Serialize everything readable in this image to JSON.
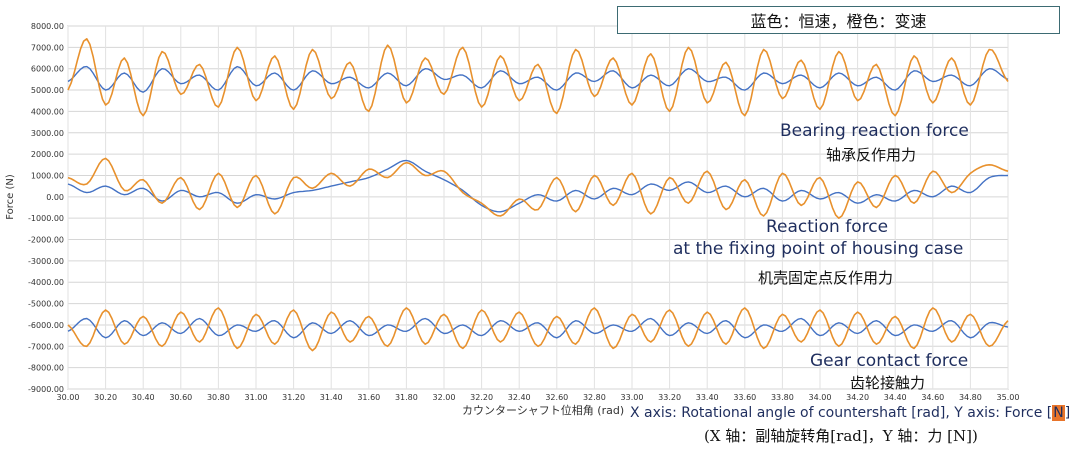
{
  "legend_text": "蓝色：恒速，橙色：变速",
  "annotations": {
    "bearing_en": "Bearing reaction force",
    "bearing_zh": "轴承反作用力",
    "housing_en_1": "Reaction force",
    "housing_en_2": "at the fixing point of housing case",
    "housing_zh": "机壳固定点反作用力",
    "gear_en": "Gear contact force",
    "gear_zh": "齿轮接触力"
  },
  "caption": {
    "en_main": "X axis: Rotational angle of countershaft [rad], Y axis: Force [",
    "en_hl": "N",
    "en_end": "]",
    "zh": "(X 轴：副轴旋转角[rad]，Y 轴：力 [N])"
  },
  "chart_data": {
    "type": "line",
    "xlabel": "カウンターシャフト位相角 (rad)",
    "ylabel": "Force (N)",
    "xlim": [
      30.0,
      35.0
    ],
    "ylim": [
      -9000,
      8000
    ],
    "x_ticks": [
      "30.00",
      "30.20",
      "30.40",
      "30.60",
      "30.80",
      "31.00",
      "31.20",
      "31.40",
      "31.60",
      "31.80",
      "32.00",
      "32.20",
      "32.40",
      "32.60",
      "32.80",
      "33.00",
      "33.20",
      "33.40",
      "33.60",
      "33.80",
      "34.00",
      "34.20",
      "34.40",
      "34.60",
      "34.80",
      "35.00"
    ],
    "y_ticks": [
      "8000.00",
      "7000.00",
      "6000.00",
      "5000.00",
      "4000.00",
      "3000.00",
      "2000.00",
      "1000.00",
      "0.00",
      "-1000.00",
      "-2000.00",
      "-3000.00",
      "-4000.00",
      "-5000.00",
      "-6000.00",
      "-7000.00",
      "-8000.00",
      "-9000.00"
    ],
    "colors": {
      "constant_speed": "#4472c4",
      "variable_speed": "#e8912d"
    },
    "grid": true,
    "series": [
      {
        "group": "bearing",
        "color": "#4472c4",
        "x": [
          30.0,
          30.1,
          30.2,
          30.3,
          30.4,
          30.5,
          30.6,
          30.7,
          30.8,
          30.9,
          31.0,
          31.1,
          31.2,
          31.3,
          31.4,
          31.5,
          31.6,
          31.7,
          31.8,
          31.9,
          32.0,
          32.1,
          32.2,
          32.3,
          32.4,
          32.5,
          32.6,
          32.7,
          32.8,
          32.9,
          33.0,
          33.1,
          33.2,
          33.3,
          33.4,
          33.5,
          33.6,
          33.7,
          33.8,
          33.9,
          34.0,
          34.1,
          34.2,
          34.3,
          34.4,
          34.5,
          34.6,
          34.7,
          34.8,
          34.9,
          35.0
        ],
        "y": [
          5400,
          6100,
          5000,
          5800,
          4900,
          6000,
          5300,
          5700,
          5000,
          6100,
          5200,
          5800,
          5000,
          5900,
          5300,
          5600,
          5100,
          5800,
          5200,
          6000,
          5500,
          5700,
          5100,
          5900,
          5300,
          5600,
          5000,
          5800,
          5400,
          5900,
          5100,
          5700,
          5200,
          6000,
          5400,
          5600,
          5000,
          5800,
          5300,
          5700,
          5100,
          5800,
          5200,
          5600,
          5000,
          5900,
          5400,
          5700,
          5200,
          6000,
          5500
        ]
      },
      {
        "group": "bearing",
        "color": "#e8912d",
        "x": [
          30.0,
          30.1,
          30.2,
          30.3,
          30.4,
          30.5,
          30.6,
          30.7,
          30.8,
          30.9,
          31.0,
          31.1,
          31.2,
          31.3,
          31.4,
          31.5,
          31.6,
          31.7,
          31.8,
          31.9,
          32.0,
          32.1,
          32.2,
          32.3,
          32.4,
          32.5,
          32.6,
          32.7,
          32.8,
          32.9,
          33.0,
          33.1,
          33.2,
          33.3,
          33.4,
          33.5,
          33.6,
          33.7,
          33.8,
          33.9,
          34.0,
          34.1,
          34.2,
          34.3,
          34.4,
          34.5,
          34.6,
          34.7,
          34.8,
          34.9,
          35.0
        ],
        "y": [
          5000,
          7400,
          4300,
          6500,
          3800,
          6800,
          4800,
          6200,
          4200,
          7000,
          4500,
          6600,
          4100,
          6900,
          4600,
          6300,
          4000,
          7100,
          4400,
          6500,
          4800,
          7000,
          4200,
          6600,
          4500,
          6200,
          3900,
          6900,
          4700,
          6500,
          4300,
          6700,
          4000,
          7000,
          4400,
          6300,
          3800,
          6900,
          4600,
          6400,
          4100,
          6800,
          4500,
          6200,
          3800,
          6600,
          4400,
          6500,
          4300,
          6900,
          5400
        ]
      },
      {
        "group": "housing",
        "color": "#4472c4",
        "x": [
          30.0,
          30.1,
          30.2,
          30.3,
          30.4,
          30.5,
          30.6,
          30.7,
          30.8,
          30.9,
          31.0,
          31.1,
          31.2,
          31.3,
          31.4,
          31.5,
          31.6,
          31.7,
          31.8,
          31.9,
          32.0,
          32.1,
          32.2,
          32.3,
          32.4,
          32.5,
          32.6,
          32.7,
          32.8,
          32.9,
          33.0,
          33.1,
          33.2,
          33.3,
          33.4,
          33.5,
          33.6,
          33.7,
          33.8,
          33.9,
          34.0,
          34.1,
          34.2,
          34.3,
          34.4,
          34.5,
          34.6,
          34.7,
          34.8,
          34.9,
          35.0
        ],
        "y": [
          600,
          200,
          500,
          100,
          400,
          -200,
          300,
          0,
          200,
          -300,
          100,
          -100,
          200,
          300,
          500,
          700,
          900,
          1300,
          1700,
          1200,
          800,
          300,
          -400,
          -700,
          -300,
          100,
          -200,
          300,
          -100,
          400,
          100,
          600,
          300,
          700,
          200,
          500,
          0,
          400,
          -200,
          300,
          -100,
          200,
          -300,
          100,
          -200,
          300,
          0,
          500,
          200,
          900,
          1000
        ]
      },
      {
        "group": "housing",
        "color": "#e8912d",
        "x": [
          30.0,
          30.1,
          30.2,
          30.3,
          30.4,
          30.5,
          30.6,
          30.7,
          30.8,
          30.9,
          31.0,
          31.1,
          31.2,
          31.3,
          31.4,
          31.5,
          31.6,
          31.7,
          31.8,
          31.9,
          32.0,
          32.1,
          32.2,
          32.3,
          32.4,
          32.5,
          32.6,
          32.7,
          32.8,
          32.9,
          33.0,
          33.1,
          33.2,
          33.3,
          33.4,
          33.5,
          33.6,
          33.7,
          33.8,
          33.9,
          34.0,
          34.1,
          34.2,
          34.3,
          34.4,
          34.5,
          34.6,
          34.7,
          34.8,
          34.9,
          35.0
        ],
        "y": [
          900,
          600,
          1800,
          300,
          800,
          -300,
          900,
          -600,
          1100,
          -500,
          1000,
          -800,
          900,
          400,
          1100,
          500,
          1300,
          900,
          1600,
          1000,
          1200,
          200,
          -300,
          -900,
          -100,
          -600,
          900,
          -700,
          1000,
          -400,
          1100,
          -800,
          900,
          -300,
          1200,
          -600,
          800,
          -900,
          1100,
          -400,
          900,
          -1000,
          700,
          -500,
          1000,
          -300,
          1200,
          200,
          1100,
          1500,
          1200
        ]
      },
      {
        "group": "gear",
        "color": "#4472c4",
        "x": [
          30.0,
          30.1,
          30.2,
          30.3,
          30.4,
          30.5,
          30.6,
          30.7,
          30.8,
          30.9,
          31.0,
          31.1,
          31.2,
          31.3,
          31.4,
          31.5,
          31.6,
          31.7,
          31.8,
          31.9,
          32.0,
          32.1,
          32.2,
          32.3,
          32.4,
          32.5,
          32.6,
          32.7,
          32.8,
          32.9,
          33.0,
          33.1,
          33.2,
          33.3,
          33.4,
          33.5,
          33.6,
          33.7,
          33.8,
          33.9,
          34.0,
          34.1,
          34.2,
          34.3,
          34.4,
          34.5,
          34.6,
          34.7,
          34.8,
          34.9,
          35.0
        ],
        "y": [
          -6300,
          -5700,
          -6600,
          -5800,
          -6500,
          -5900,
          -6400,
          -5700,
          -6500,
          -6000,
          -6300,
          -5800,
          -6600,
          -5900,
          -6400,
          -5800,
          -6500,
          -6000,
          -6300,
          -5700,
          -6400,
          -6000,
          -6500,
          -5800,
          -6300,
          -5900,
          -6600,
          -5800,
          -6400,
          -6000,
          -6300,
          -5700,
          -6500,
          -5900,
          -6400,
          -5800,
          -6600,
          -6000,
          -6300,
          -5700,
          -6500,
          -5900,
          -6400,
          -5800,
          -6500,
          -6000,
          -6300,
          -5800,
          -6600,
          -5900,
          -6100
        ]
      },
      {
        "group": "gear",
        "color": "#e8912d",
        "x": [
          30.0,
          30.1,
          30.2,
          30.3,
          30.4,
          30.5,
          30.6,
          30.7,
          30.8,
          30.9,
          31.0,
          31.1,
          31.2,
          31.3,
          31.4,
          31.5,
          31.6,
          31.7,
          31.8,
          31.9,
          32.0,
          32.1,
          32.2,
          32.3,
          32.4,
          32.5,
          32.6,
          32.7,
          32.8,
          32.9,
          33.0,
          33.1,
          33.2,
          33.3,
          33.4,
          33.5,
          33.6,
          33.7,
          33.8,
          33.9,
          34.0,
          34.1,
          34.2,
          34.3,
          34.4,
          34.5,
          34.6,
          34.7,
          34.8,
          34.9,
          35.0
        ],
        "y": [
          -6000,
          -7000,
          -5300,
          -6900,
          -5600,
          -7000,
          -5400,
          -6800,
          -5200,
          -7100,
          -5500,
          -6900,
          -5300,
          -7200,
          -5400,
          -6800,
          -5600,
          -7000,
          -5200,
          -6900,
          -5500,
          -7100,
          -5300,
          -6800,
          -5400,
          -7000,
          -5600,
          -6900,
          -5200,
          -7100,
          -5500,
          -6800,
          -5300,
          -7000,
          -5400,
          -6900,
          -5200,
          -7100,
          -5500,
          -6800,
          -5300,
          -7000,
          -5400,
          -6900,
          -5600,
          -7100,
          -5200,
          -6800,
          -5500,
          -7000,
          -5800
        ]
      }
    ]
  }
}
